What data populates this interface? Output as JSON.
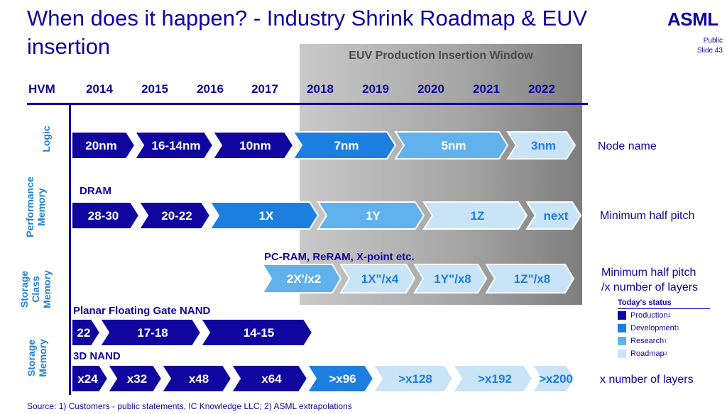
{
  "title": "When does it happen? - Industry Shrink Roadmap & EUV insertion",
  "logo": "ASML",
  "classification": "Public",
  "slide": "Slide 43",
  "euv_window_label": "EUV Production Insertion Window",
  "hvm_label": "HVM",
  "years": [
    "2014",
    "2015",
    "2016",
    "2017",
    "2018",
    "2019",
    "2020",
    "2021",
    "2022"
  ],
  "colors": {
    "production": "#10069f",
    "development": "#1c7fe0",
    "research": "#61b2ec",
    "roadmap": "#c9e3f7"
  },
  "rows": {
    "logic": {
      "label": "Logic",
      "desc": "Node name",
      "segments": [
        {
          "text": "20nm",
          "status": "production"
        },
        {
          "text": "16-14nm",
          "status": "production"
        },
        {
          "text": "10nm",
          "status": "production"
        },
        {
          "text": "7nm",
          "status": "development"
        },
        {
          "text": "5nm",
          "status": "research"
        },
        {
          "text": "3nm",
          "status": "roadmap"
        }
      ]
    },
    "dram": {
      "label": "Performance Memory",
      "sublabel": "DRAM",
      "desc": "Minimum half pitch",
      "segments": [
        {
          "text": "28-30",
          "status": "production"
        },
        {
          "text": "20-22",
          "status": "production"
        },
        {
          "text": "1X",
          "status": "development"
        },
        {
          "text": "1Y",
          "status": "research"
        },
        {
          "text": "1Z",
          "status": "roadmap"
        },
        {
          "text": "next",
          "status": "roadmap"
        }
      ]
    },
    "scm": {
      "label": "Storage Class Memory",
      "sublabel": "PC-RAM, ReRAM, X-point etc.",
      "desc_line1": "Minimum half pitch",
      "desc_line2": "/x number of layers",
      "segments": [
        {
          "text": "2X'/x2",
          "status": "research"
        },
        {
          "text": "1X\"/x4",
          "status": "roadmap"
        },
        {
          "text": "1Y\"/x8",
          "status": "roadmap"
        },
        {
          "text": "1Z\"/x8",
          "status": "roadmap"
        }
      ]
    },
    "planar": {
      "sublabel": "Planar Floating Gate NAND",
      "segments": [
        {
          "text": "22",
          "status": "production"
        },
        {
          "text": "17-18",
          "status": "production"
        },
        {
          "text": "14-15",
          "status": "production"
        }
      ]
    },
    "nand3d": {
      "label": "Storage Memory",
      "sublabel": "3D NAND",
      "desc": "x number of layers",
      "segments": [
        {
          "text": "x24",
          "status": "production"
        },
        {
          "text": "x32",
          "status": "production"
        },
        {
          "text": "x48",
          "status": "production"
        },
        {
          "text": "x64",
          "status": "production"
        },
        {
          "text": ">x96",
          "status": "development"
        },
        {
          "text": ">x128",
          "status": "roadmap"
        },
        {
          "text": ">x192",
          "status": "roadmap"
        },
        {
          "text": ">x200",
          "status": "roadmap"
        }
      ]
    }
  },
  "legend": {
    "title": "Today's status",
    "items": [
      {
        "label": "Production",
        "sup": "1",
        "status": "production"
      },
      {
        "label": "Development",
        "sup": "1",
        "status": "development"
      },
      {
        "label": "Research",
        "sup": "1",
        "status": "research"
      },
      {
        "label": "Roadmap",
        "sup": "2",
        "status": "roadmap"
      }
    ]
  },
  "source": "Source: 1) Customers - public statements, IC Knowledge LLC; 2) ASML extrapolations"
}
